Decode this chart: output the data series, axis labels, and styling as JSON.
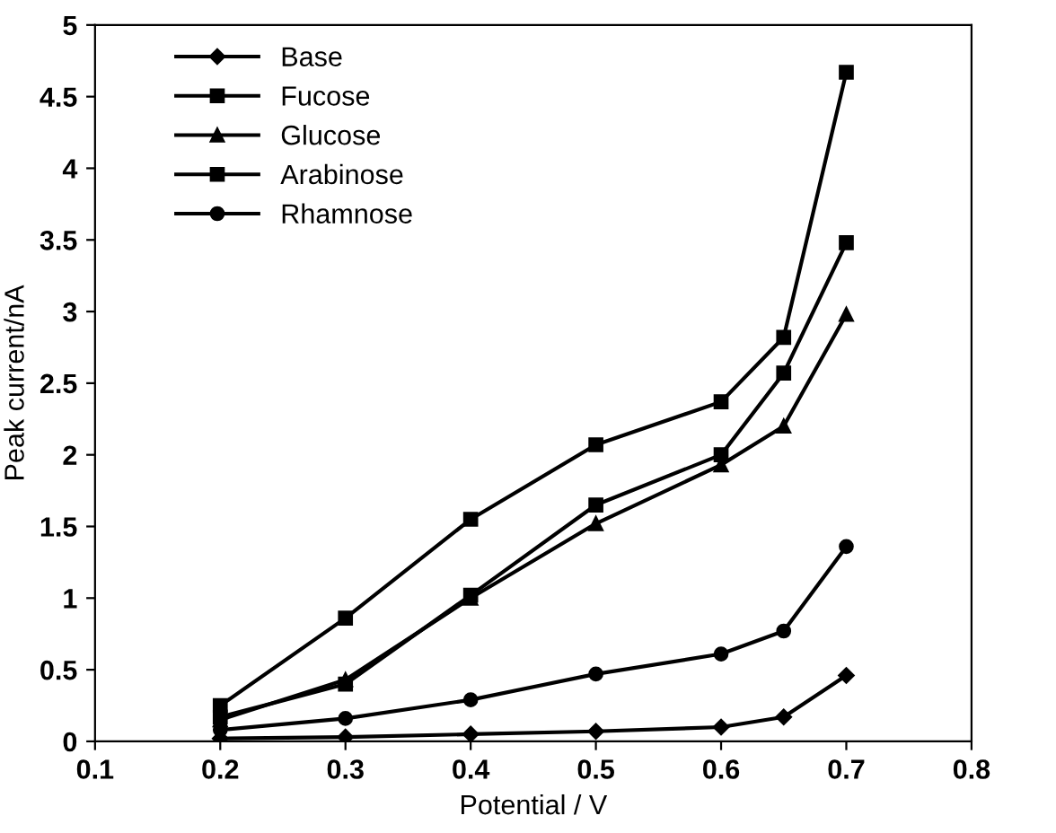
{
  "chart_data": {
    "type": "line",
    "xlabel": "Potential / V",
    "ylabel": "Peak current/nA",
    "x": [
      0.2,
      0.3,
      0.4,
      0.5,
      0.6,
      0.65,
      0.7
    ],
    "series": [
      {
        "name": "Base",
        "color": "#000000",
        "marker": "diamond",
        "values": [
          0.02,
          0.03,
          0.05,
          0.07,
          0.1,
          0.17,
          0.46
        ]
      },
      {
        "name": "Fucose",
        "color": "#000000",
        "marker": "square",
        "values": [
          0.25,
          0.86,
          1.55,
          2.07,
          2.37,
          2.82,
          4.67
        ]
      },
      {
        "name": "Glucose",
        "color": "#000000",
        "marker": "triangle",
        "values": [
          0.15,
          0.43,
          1.0,
          1.52,
          1.93,
          2.2,
          2.98
        ]
      },
      {
        "name": "Arabinose",
        "color": "#000000",
        "marker": "square",
        "values": [
          0.17,
          0.4,
          1.02,
          1.65,
          2.0,
          2.57,
          3.48
        ]
      },
      {
        "name": "Rhamnose",
        "color": "#000000",
        "marker": "circle",
        "values": [
          0.08,
          0.16,
          0.29,
          0.47,
          0.61,
          0.77,
          1.36
        ]
      }
    ],
    "xlim": [
      0.1,
      0.8
    ],
    "xticks": [
      0.1,
      0.2,
      0.3,
      0.4,
      0.5,
      0.6,
      0.7,
      0.8
    ],
    "ylim": [
      0,
      5
    ],
    "yticks": [
      0,
      0.5,
      1,
      1.5,
      2,
      2.5,
      3,
      3.5,
      4,
      4.5,
      5
    ],
    "grid": false,
    "legend": "top left",
    "line_style": "solid"
  }
}
